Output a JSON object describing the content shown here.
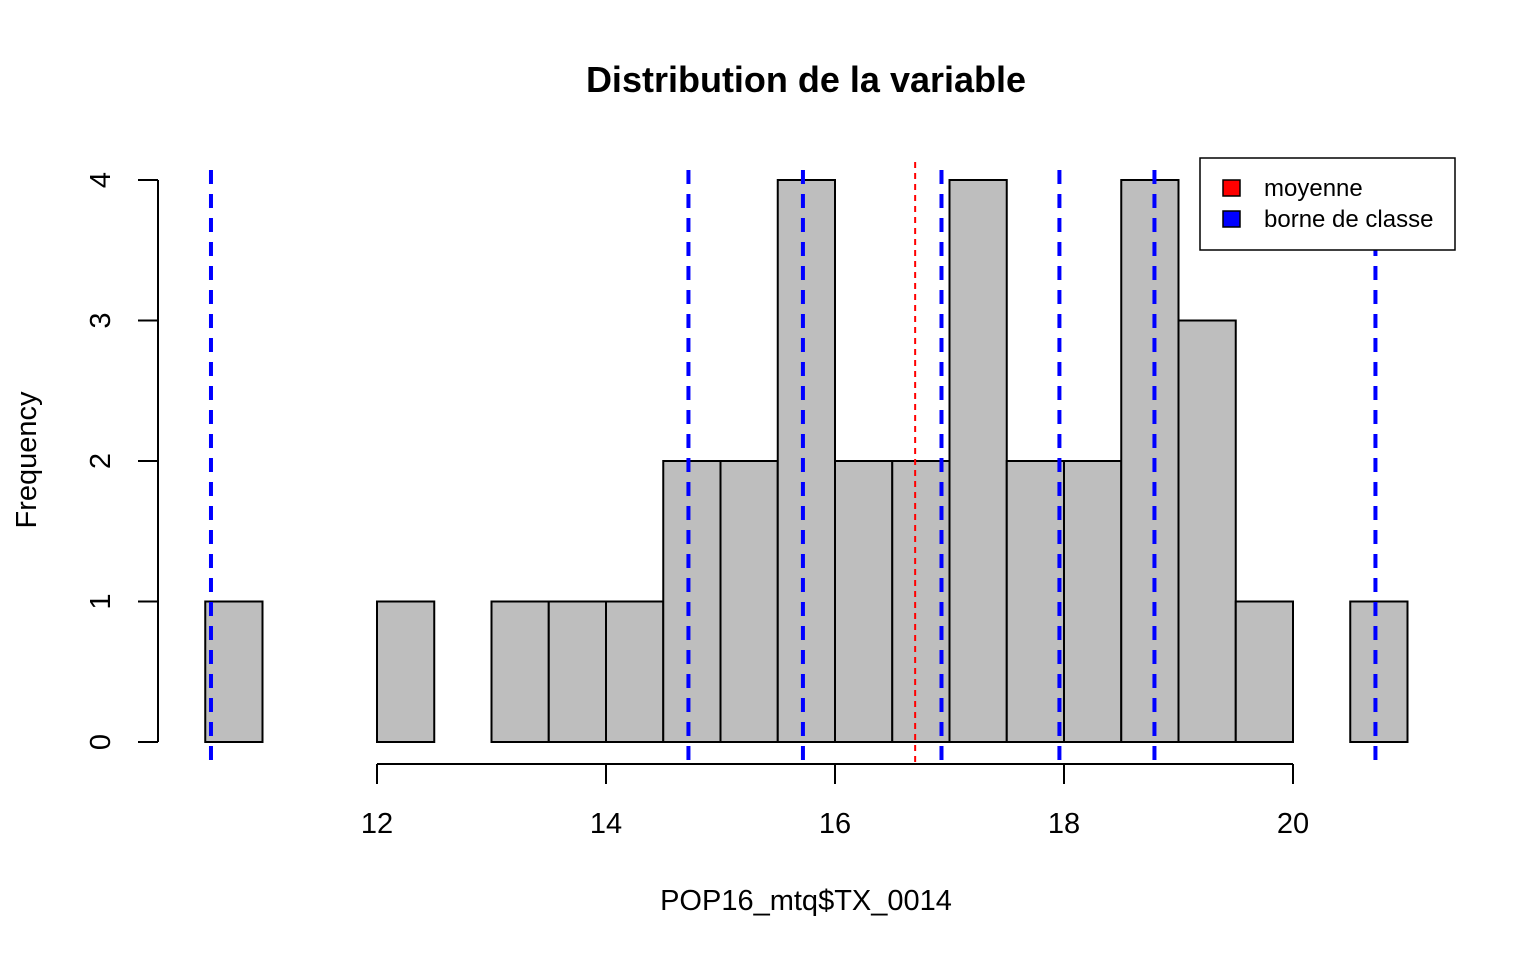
{
  "chart_data": {
    "type": "histogram",
    "title": "Distribution de la variable",
    "xlabel": "POP16_mtq$TX_0014",
    "ylabel": "Frequency",
    "xlim": [
      10.3,
      21.3
    ],
    "ylim": [
      0,
      4
    ],
    "bin_edges": [
      10.5,
      11,
      11.5,
      12,
      12.5,
      13,
      13.5,
      14,
      14.5,
      15,
      15.5,
      16,
      16.5,
      17,
      17.5,
      18,
      18.5,
      19,
      19.5,
      20,
      20.5,
      21
    ],
    "counts": [
      1,
      0,
      0,
      1,
      0,
      1,
      1,
      1,
      2,
      2,
      4,
      2,
      2,
      4,
      2,
      2,
      4,
      3,
      1,
      0,
      1
    ],
    "x_ticks": [
      12,
      14,
      16,
      18,
      20
    ],
    "y_ticks": [
      0,
      1,
      2,
      3,
      4
    ],
    "bar_color": "#bebebe",
    "mean": 16.7,
    "mean_color": "#ff0000",
    "class_breaks": [
      10.55,
      14.72,
      15.72,
      16.93,
      17.96,
      18.79,
      20.72
    ],
    "break_color": "#0000ff",
    "legend": {
      "position": "top-right",
      "items": [
        {
          "label": "moyenne",
          "color": "#ff0000"
        },
        {
          "label": "borne de classe",
          "color": "#0000ff"
        }
      ]
    }
  }
}
